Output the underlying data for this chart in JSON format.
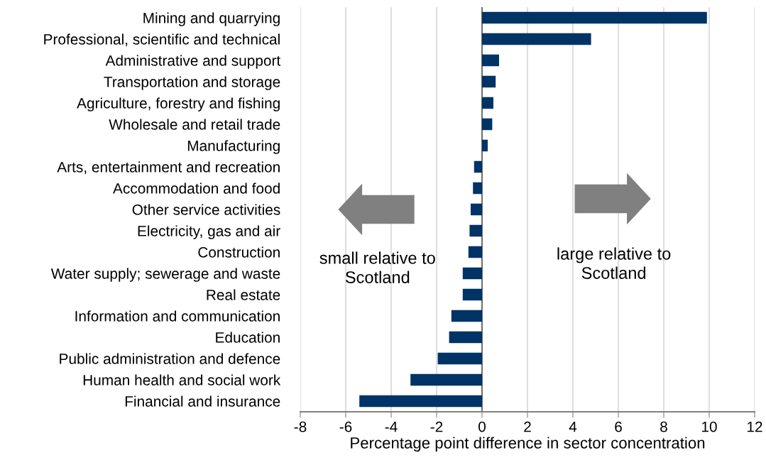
{
  "chart_data": {
    "type": "bar",
    "orientation": "horizontal",
    "categories": [
      "Mining and quarrying",
      "Professional, scientific and technical",
      "Administrative and support",
      "Transportation and storage",
      "Agriculture, forestry and fishing",
      "Wholesale and retail trade",
      "Manufacturing",
      "Arts, entertainment and recreation",
      "Accommodation and food",
      "Other service activities",
      "Electricity, gas and air",
      "Construction",
      "Water supply; sewerage and waste",
      "Real estate",
      "Information and communication",
      "Education",
      "Public administration and defence",
      "Human health and social work",
      "Financial and insurance"
    ],
    "values": [
      9.9,
      4.8,
      0.75,
      0.6,
      0.5,
      0.45,
      0.25,
      -0.35,
      -0.4,
      -0.5,
      -0.55,
      -0.6,
      -0.85,
      -0.85,
      -1.35,
      -1.45,
      -1.95,
      -3.15,
      -5.4
    ],
    "color": "#003366",
    "xlim": [
      -8,
      12
    ],
    "xticks": [
      -8,
      -6,
      -4,
      -2,
      0,
      2,
      4,
      6,
      8,
      10,
      12
    ],
    "xlabel": "Percentage point difference in sector concentration",
    "grid": "x",
    "annotations": [
      "small relative to\nScotland",
      "large relative to\nScotland"
    ]
  }
}
